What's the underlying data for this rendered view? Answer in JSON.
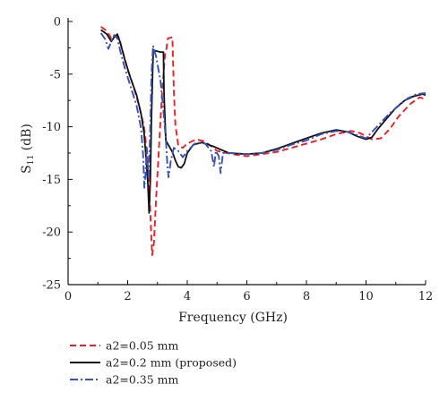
{
  "chart_data": {
    "type": "line",
    "xlabel": "Frequency (GHz)",
    "ylabel": "S",
    "ylabel_sub": "11",
    "ylabel_unit": " (dB)",
    "xlim": [
      0,
      12
    ],
    "ylim": [
      -25,
      0
    ],
    "x_ticks": [
      0,
      2,
      4,
      6,
      8,
      10,
      12
    ],
    "y_ticks": [
      0,
      -5,
      -10,
      -15,
      -20,
      -25
    ],
    "grid": false,
    "legend_position": "bottom-left",
    "series": [
      {
        "name": "a2=0.05 mm",
        "color": "#e8202a",
        "dash": "dashed",
        "points": [
          [
            1.1,
            -0.5
          ],
          [
            1.3,
            -0.9
          ],
          [
            1.45,
            -1.6
          ],
          [
            1.55,
            -1.3
          ],
          [
            1.7,
            -1.5
          ],
          [
            1.85,
            -3
          ],
          [
            2.0,
            -4.6
          ],
          [
            2.2,
            -6.2
          ],
          [
            2.4,
            -8.2
          ],
          [
            2.55,
            -10
          ],
          [
            2.65,
            -12.5
          ],
          [
            2.72,
            -15.5
          ],
          [
            2.78,
            -19.5
          ],
          [
            2.82,
            -22.2
          ],
          [
            2.88,
            -21
          ],
          [
            2.95,
            -17
          ],
          [
            3.05,
            -12
          ],
          [
            3.15,
            -7
          ],
          [
            3.25,
            -3.2
          ],
          [
            3.3,
            -2.6
          ],
          [
            3.35,
            -1.6
          ],
          [
            3.5,
            -1.5
          ],
          [
            3.55,
            -6.5
          ],
          [
            3.6,
            -9.8
          ],
          [
            3.7,
            -11.8
          ],
          [
            3.85,
            -12
          ],
          [
            4.0,
            -11.6
          ],
          [
            4.3,
            -11.2
          ],
          [
            4.6,
            -11.4
          ],
          [
            5.0,
            -12.3
          ],
          [
            5.5,
            -12.6
          ],
          [
            6.0,
            -12.8
          ],
          [
            6.5,
            -12.6
          ],
          [
            7.0,
            -12.4
          ],
          [
            7.5,
            -12
          ],
          [
            8.0,
            -11.6
          ],
          [
            8.5,
            -11.2
          ],
          [
            9.0,
            -10.7
          ],
          [
            9.5,
            -10.4
          ],
          [
            9.8,
            -10.6
          ],
          [
            10.0,
            -10.9
          ],
          [
            10.2,
            -11.2
          ],
          [
            10.5,
            -11.1
          ],
          [
            10.8,
            -10.2
          ],
          [
            11.1,
            -9
          ],
          [
            11.5,
            -7.8
          ],
          [
            11.8,
            -7.2
          ],
          [
            12.0,
            -7.4
          ]
        ]
      },
      {
        "name": "a2=0.2 mm (proposed)",
        "color": "#111111",
        "dash": "solid",
        "points": [
          [
            1.1,
            -0.8
          ],
          [
            1.3,
            -1.2
          ],
          [
            1.45,
            -1.9
          ],
          [
            1.55,
            -1.5
          ],
          [
            1.65,
            -1.2
          ],
          [
            1.75,
            -2
          ],
          [
            1.9,
            -3.6
          ],
          [
            2.1,
            -5.4
          ],
          [
            2.3,
            -7
          ],
          [
            2.45,
            -8.8
          ],
          [
            2.55,
            -10.6
          ],
          [
            2.62,
            -13
          ],
          [
            2.68,
            -15.5
          ],
          [
            2.72,
            -18.2
          ],
          [
            2.76,
            -15
          ],
          [
            2.8,
            -9
          ],
          [
            2.84,
            -4.6
          ],
          [
            2.86,
            -2.7
          ],
          [
            2.95,
            -2.8
          ],
          [
            3.1,
            -2.9
          ],
          [
            3.2,
            -2.9
          ],
          [
            3.22,
            -7
          ],
          [
            3.28,
            -11.3
          ],
          [
            3.38,
            -11.8
          ],
          [
            3.5,
            -12.4
          ],
          [
            3.6,
            -13.2
          ],
          [
            3.7,
            -13.8
          ],
          [
            3.8,
            -13.9
          ],
          [
            3.9,
            -13.5
          ],
          [
            4.0,
            -12.5
          ],
          [
            4.2,
            -11.7
          ],
          [
            4.5,
            -11.5
          ],
          [
            4.9,
            -11.9
          ],
          [
            5.4,
            -12.5
          ],
          [
            6.0,
            -12.6
          ],
          [
            6.5,
            -12.5
          ],
          [
            7.0,
            -12.1
          ],
          [
            7.5,
            -11.6
          ],
          [
            8.0,
            -11.1
          ],
          [
            8.5,
            -10.6
          ],
          [
            9.0,
            -10.3
          ],
          [
            9.4,
            -10.5
          ],
          [
            9.7,
            -10.9
          ],
          [
            10.0,
            -11.2
          ],
          [
            10.2,
            -11
          ],
          [
            10.4,
            -10.2
          ],
          [
            10.7,
            -9.2
          ],
          [
            11.0,
            -8.2
          ],
          [
            11.3,
            -7.5
          ],
          [
            11.6,
            -7.1
          ],
          [
            11.9,
            -6.9
          ],
          [
            12.0,
            -7
          ]
        ]
      },
      {
        "name": "a2=0.35 mm",
        "color": "#3a52b0",
        "dash": "dashdot",
        "points": [
          [
            1.1,
            -1.1
          ],
          [
            1.25,
            -1.7
          ],
          [
            1.35,
            -2.6
          ],
          [
            1.45,
            -1.9
          ],
          [
            1.55,
            -1.3
          ],
          [
            1.65,
            -1.6
          ],
          [
            1.75,
            -2.8
          ],
          [
            1.9,
            -4.4
          ],
          [
            2.1,
            -6.2
          ],
          [
            2.3,
            -8
          ],
          [
            2.45,
            -10.2
          ],
          [
            2.52,
            -12.8
          ],
          [
            2.56,
            -15.8
          ],
          [
            2.6,
            -14.5
          ],
          [
            2.64,
            -12
          ],
          [
            2.7,
            -14.8
          ],
          [
            2.75,
            -11
          ],
          [
            2.8,
            -5
          ],
          [
            2.85,
            -2.3
          ],
          [
            2.95,
            -3.3
          ],
          [
            3.1,
            -5.6
          ],
          [
            3.2,
            -8.5
          ],
          [
            3.28,
            -11.2
          ],
          [
            3.33,
            -13.5
          ],
          [
            3.37,
            -14.8
          ],
          [
            3.45,
            -13.2
          ],
          [
            3.55,
            -12
          ],
          [
            3.7,
            -12.3
          ],
          [
            3.85,
            -12.9
          ],
          [
            4.0,
            -12.3
          ],
          [
            4.3,
            -11.5
          ],
          [
            4.6,
            -11.6
          ],
          [
            4.8,
            -12.3
          ],
          [
            4.9,
            -13.8
          ],
          [
            4.96,
            -12.3
          ],
          [
            5.06,
            -12.8
          ],
          [
            5.12,
            -14.4
          ],
          [
            5.2,
            -12.5
          ],
          [
            5.5,
            -12.5
          ],
          [
            6.0,
            -12.6
          ],
          [
            6.5,
            -12.5
          ],
          [
            7.0,
            -12.2
          ],
          [
            7.5,
            -11.7
          ],
          [
            8.0,
            -11.3
          ],
          [
            8.5,
            -10.7
          ],
          [
            9.0,
            -10.4
          ],
          [
            9.4,
            -10.5
          ],
          [
            9.8,
            -10.9
          ],
          [
            10.0,
            -11.1
          ],
          [
            10.2,
            -10.5
          ],
          [
            10.5,
            -9.6
          ],
          [
            10.8,
            -8.7
          ],
          [
            11.1,
            -8
          ],
          [
            11.4,
            -7.3
          ],
          [
            11.7,
            -6.9
          ],
          [
            12.0,
            -6.8
          ]
        ]
      }
    ]
  }
}
